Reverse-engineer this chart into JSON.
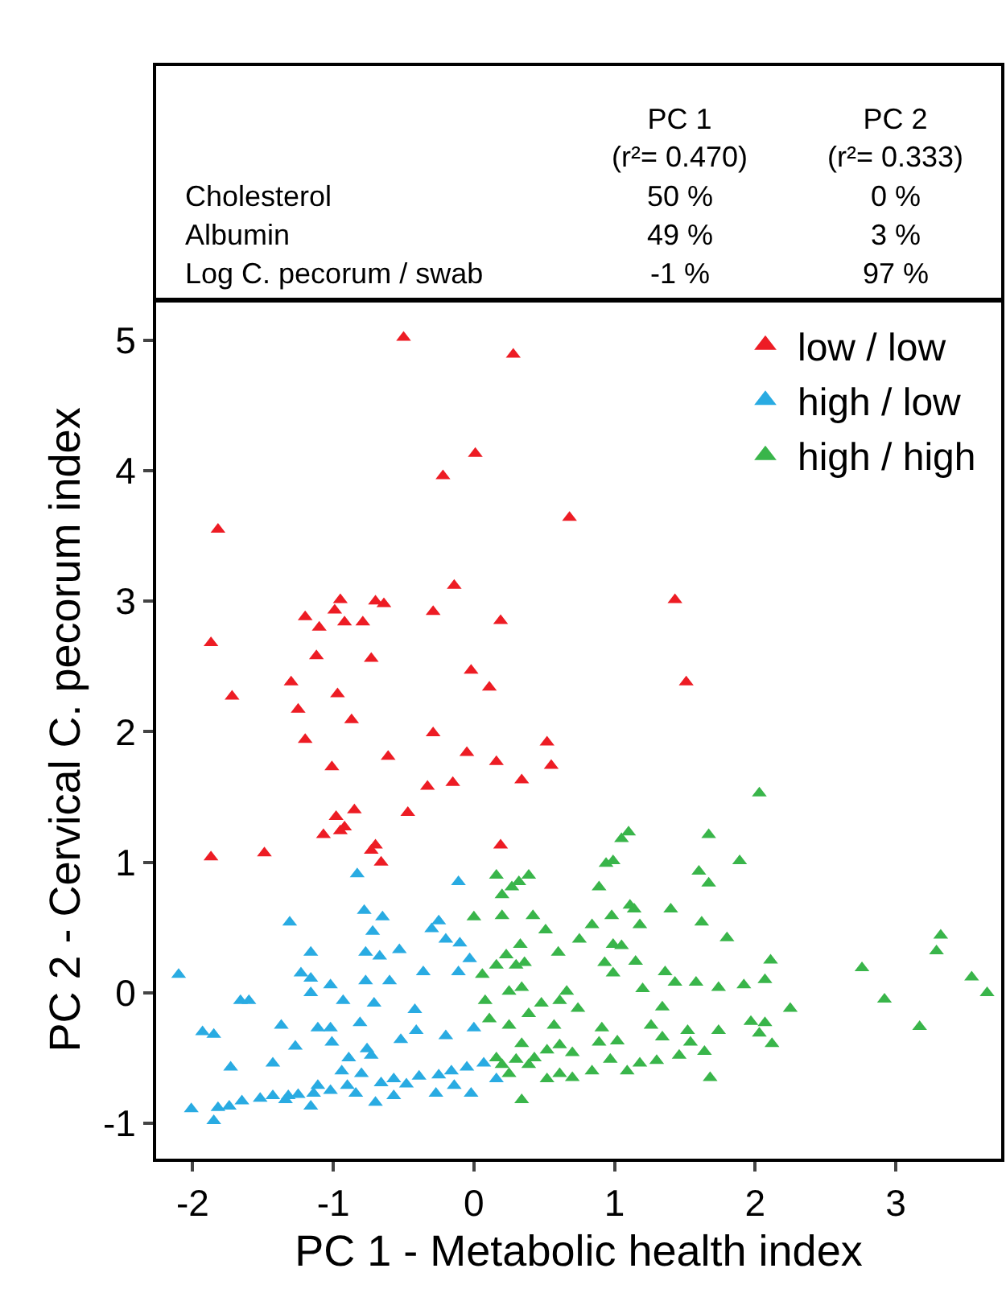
{
  "chart_data": {
    "type": "scatter",
    "xlabel": "PC 1 - Metabolic health index",
    "ylabel": "PC 2 - Cervical C. pecorum index",
    "annotations": [
      "PC 1\n(r²= 0.470)",
      "PC 2\n(r²= 0.333)",
      "Cholesterol",
      "50 %",
      "0 %",
      "Albumin",
      "49 %",
      "3 %",
      "Log C. pecorum / swab",
      "-1 %",
      "97 %"
    ],
    "xlim": [
      -2.26,
      3.75
    ],
    "ylim": [
      -1.27,
      5.3
    ],
    "xticks": [
      -2,
      -1,
      0,
      1,
      2,
      3
    ],
    "yticks": [
      -1,
      0,
      1,
      2,
      3,
      4,
      5
    ],
    "legend": "top right",
    "marker": "triangle",
    "series": [
      {
        "name": "low / low",
        "color": "#ed1c24",
        "x": [
          -0.5,
          0.28,
          0.01,
          -0.22,
          0.68,
          -1.82,
          1.43,
          -0.14,
          -0.95,
          -0.7,
          -0.64,
          -0.99,
          -0.29,
          -1.2,
          -0.92,
          -0.79,
          0.19,
          -1.1,
          -1.87,
          -1.12,
          -0.73,
          -0.02,
          -1.3,
          0.11,
          1.51,
          -1.72,
          -0.97,
          -1.25,
          -0.87,
          -1.2,
          -0.29,
          0.52,
          -0.61,
          -0.05,
          0.16,
          0.55,
          -1.01,
          -0.15,
          -0.33,
          0.34,
          -0.47,
          -0.85,
          -0.98,
          -0.92,
          -0.95,
          -1.07,
          -0.7,
          -0.73,
          0.19,
          -0.66,
          -1.87,
          -1.49
        ],
        "values": [
          5.02,
          4.89,
          4.13,
          3.96,
          3.64,
          3.55,
          3.01,
          3.12,
          3.01,
          3.0,
          2.98,
          2.93,
          2.92,
          2.88,
          2.84,
          2.84,
          2.85,
          2.8,
          2.68,
          2.58,
          2.56,
          2.47,
          2.38,
          2.34,
          2.38,
          2.27,
          2.29,
          2.17,
          2.09,
          1.94,
          1.99,
          1.92,
          1.81,
          1.84,
          1.77,
          1.74,
          1.73,
          1.61,
          1.58,
          1.63,
          1.38,
          1.4,
          1.35,
          1.27,
          1.24,
          1.21,
          1.13,
          1.09,
          1.13,
          1.0,
          1.04,
          1.07
        ]
      },
      {
        "name": "high / low",
        "color": "#29abe2",
        "x": [
          -2.1,
          -0.83,
          -0.11,
          -0.78,
          -0.65,
          -0.72,
          -1.31,
          -0.25,
          -0.3,
          -0.2,
          -0.1,
          -1.16,
          -0.77,
          -0.67,
          -0.53,
          -0.03,
          -1.23,
          -1.16,
          -1.02,
          -0.77,
          -0.6,
          -0.36,
          -0.11,
          -1.16,
          -1.66,
          -1.6,
          -0.93,
          -0.71,
          -0.42,
          -1.37,
          -1.11,
          -1.02,
          -0.81,
          -0.41,
          -0.2,
          0.0,
          -1.93,
          -1.85,
          -1.27,
          -1.01,
          -0.76,
          -0.52,
          -1.73,
          -1.43,
          -0.89,
          -0.73,
          -2.01,
          -1.85,
          -1.82,
          -1.74,
          -1.65,
          -1.52,
          -1.43,
          -1.32,
          -1.25,
          -1.16,
          -1.14,
          -1.02,
          -0.9,
          -0.84,
          -0.7,
          -0.66,
          -0.57,
          -0.48,
          -0.39,
          -0.27,
          -0.25,
          -0.16,
          -0.02,
          -0.05,
          0.07,
          0.16,
          -0.8,
          -0.57,
          -1.11,
          -1.34,
          -0.14,
          -0.94
        ],
        "values": [
          0.14,
          0.91,
          0.85,
          0.63,
          0.58,
          0.47,
          0.54,
          0.55,
          0.49,
          0.41,
          0.38,
          0.31,
          0.31,
          0.28,
          0.33,
          0.26,
          0.15,
          0.11,
          0.06,
          0.09,
          0.09,
          0.16,
          0.16,
          0.0,
          -0.06,
          -0.06,
          -0.06,
          -0.08,
          -0.13,
          -0.25,
          -0.27,
          -0.27,
          -0.23,
          -0.29,
          -0.33,
          -0.27,
          -0.3,
          -0.32,
          -0.41,
          -0.38,
          -0.43,
          -0.36,
          -0.57,
          -0.54,
          -0.5,
          -0.48,
          -0.89,
          -0.98,
          -0.88,
          -0.87,
          -0.83,
          -0.81,
          -0.79,
          -0.79,
          -0.78,
          -0.87,
          -0.77,
          -0.75,
          -0.71,
          -0.77,
          -0.84,
          -0.69,
          -0.66,
          -0.7,
          -0.64,
          -0.77,
          -0.63,
          -0.6,
          -0.77,
          -0.57,
          -0.54,
          -0.66,
          -0.62,
          -0.79,
          -0.71,
          -0.82,
          -0.71,
          -0.6
        ]
      },
      {
        "name": "high / high",
        "color": "#39b54a",
        "x": [
          2.03,
          1.1,
          1.05,
          1.67,
          1.89,
          0.94,
          0.99,
          1.6,
          1.67,
          0.16,
          0.39,
          0.32,
          0.27,
          0.2,
          0.89,
          1.4,
          1.11,
          1.14,
          0.0,
          0.2,
          0.42,
          0.98,
          1.18,
          1.62,
          0.84,
          0.51,
          0.75,
          1.8,
          3.32,
          3.29,
          0.6,
          0.23,
          0.33,
          0.99,
          1.05,
          1.15,
          2.11,
          0.93,
          0.16,
          0.3,
          0.36,
          2.76,
          1.36,
          0.06,
          0.99,
          1.43,
          1.58,
          2.07,
          3.54,
          3.65,
          1.92,
          1.74,
          0.25,
          0.34,
          0.66,
          1.2,
          2.92,
          0.08,
          0.48,
          0.61,
          0.74,
          1.34,
          2.25,
          3.17,
          0.11,
          0.25,
          0.39,
          0.57,
          0.91,
          1.26,
          1.52,
          1.74,
          1.97,
          2.07,
          2.03,
          2.12,
          0.89,
          1.02,
          1.34,
          1.54,
          0.61,
          0.34,
          0.16,
          0.3,
          0.43,
          0.52,
          0.7,
          0.84,
          0.97,
          1.09,
          1.3,
          1.46,
          1.64,
          1.68,
          0.34,
          0.25,
          0.39,
          0.52,
          0.61,
          0.7,
          1.18,
          0.2
        ],
        "values": [
          1.53,
          1.23,
          1.18,
          1.21,
          1.01,
          0.99,
          1.01,
          0.93,
          0.84,
          0.9,
          0.9,
          0.85,
          0.81,
          0.75,
          0.81,
          0.64,
          0.67,
          0.64,
          0.58,
          0.59,
          0.59,
          0.59,
          0.52,
          0.54,
          0.52,
          0.48,
          0.41,
          0.42,
          0.44,
          0.32,
          0.31,
          0.29,
          0.37,
          0.37,
          0.36,
          0.24,
          0.25,
          0.23,
          0.21,
          0.21,
          0.23,
          0.19,
          0.16,
          0.14,
          0.15,
          0.08,
          0.08,
          0.1,
          0.12,
          0.0,
          0.06,
          0.04,
          0.01,
          0.04,
          0.01,
          0.03,
          -0.05,
          -0.06,
          -0.08,
          -0.06,
          -0.12,
          -0.11,
          -0.12,
          -0.26,
          -0.2,
          -0.25,
          -0.16,
          -0.25,
          -0.27,
          -0.25,
          -0.29,
          -0.29,
          -0.22,
          -0.23,
          -0.31,
          -0.39,
          -0.38,
          -0.37,
          -0.34,
          -0.38,
          -0.4,
          -0.39,
          -0.5,
          -0.51,
          -0.5,
          -0.44,
          -0.46,
          -0.6,
          -0.51,
          -0.6,
          -0.52,
          -0.48,
          -0.45,
          -0.65,
          -0.82,
          -0.62,
          -0.55,
          -0.66,
          -0.62,
          -0.65,
          -0.54,
          -0.55
        ]
      }
    ]
  }
}
